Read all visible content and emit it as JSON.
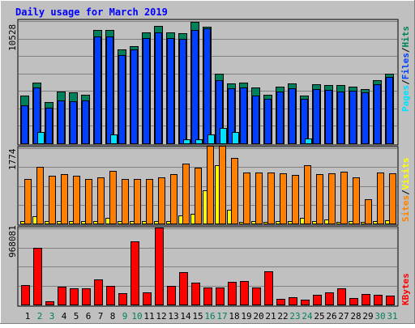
{
  "chart_data": [
    {
      "type": "bar",
      "title": "Daily usage for March 2019",
      "categories": [
        "1",
        "2",
        "3",
        "4",
        "5",
        "6",
        "7",
        "8",
        "9",
        "10",
        "11",
        "12",
        "13",
        "14",
        "15",
        "16",
        "17",
        "18",
        "19",
        "20",
        "21",
        "22",
        "23",
        "24",
        "25",
        "26",
        "27",
        "28",
        "29",
        "30",
        "31"
      ],
      "weekend_days": [
        "2",
        "3",
        "9",
        "10",
        "16",
        "17",
        "23",
        "24",
        "30",
        "31"
      ],
      "ylabel_parts": [
        "Pages",
        "Files",
        "Hits"
      ],
      "ymax_label": "10528",
      "ylim": [
        0,
        10528
      ],
      "grid": true,
      "series": [
        {
          "name": "Hits",
          "color": "#00805c",
          "values": [
            4110,
            5220,
            3570,
            4430,
            4370,
            4150,
            9760,
            9760,
            8070,
            8340,
            9550,
            10090,
            9520,
            9510,
            10450,
            10040,
            6010,
            5160,
            5210,
            4800,
            4180,
            4880,
            5170,
            4080,
            5110,
            5000,
            5010,
            4860,
            4690,
            5450,
            6020
          ]
        },
        {
          "name": "Files",
          "color": "#0040ff",
          "values": [
            3290,
            4840,
            3040,
            3670,
            3620,
            3670,
            9210,
            9230,
            7620,
            8060,
            9090,
            9520,
            9030,
            9010,
            9790,
            9880,
            5450,
            4760,
            4800,
            4130,
            3810,
            4450,
            4730,
            3810,
            4650,
            4580,
            4490,
            4500,
            4410,
            5060,
            5720
          ]
        },
        {
          "name": "Pages",
          "color": "#00e0ff",
          "values": [
            0,
            1010,
            0,
            0,
            0,
            0,
            0,
            790,
            0,
            0,
            0,
            0,
            0,
            380,
            370,
            800,
            1310,
            1010,
            0,
            0,
            0,
            0,
            0,
            440,
            0,
            0,
            0,
            0,
            0,
            0,
            0
          ]
        }
      ]
    },
    {
      "type": "bar",
      "ylabel_parts": [
        "Sites",
        "Visits"
      ],
      "ymax_label": "1774",
      "ylim": [
        0,
        1774
      ],
      "grid": true,
      "series": [
        {
          "name": "Visits",
          "color": "#ffff00",
          "values": [
            60,
            180,
            50,
            60,
            50,
            60,
            50,
            130,
            50,
            60,
            50,
            60,
            50,
            200,
            230,
            790,
            1370,
            330,
            40,
            60,
            40,
            60,
            50,
            140,
            50,
            100,
            40,
            50,
            30,
            50,
            70
          ]
        },
        {
          "name": "Sites",
          "color": "#ff8000",
          "values": [
            1040,
            1330,
            1120,
            1160,
            1120,
            1050,
            1080,
            1240,
            1050,
            1050,
            1050,
            1090,
            1160,
            1420,
            1310,
            1830,
            1830,
            1540,
            1210,
            1210,
            1200,
            1190,
            1140,
            1370,
            1170,
            1180,
            1220,
            1080,
            580,
            1200,
            1180
          ]
        }
      ]
    },
    {
      "type": "bar",
      "ylabel_parts": [
        "KBytes"
      ],
      "ymax_label": "968081",
      "ylim": [
        0,
        968081
      ],
      "grid": true,
      "series": [
        {
          "name": "KBytes",
          "color": "#ff0000",
          "values": [
            245000,
            723000,
            42000,
            229000,
            206000,
            206000,
            322000,
            233000,
            143000,
            804000,
            155000,
            975000,
            240000,
            412000,
            281000,
            221000,
            221000,
            286000,
            296000,
            213000,
            423000,
            73000,
            91000,
            60000,
            125000,
            156000,
            206000,
            80000,
            137000,
            124000,
            117000
          ]
        }
      ]
    }
  ],
  "legend_colors": {
    "Pages": "#00e0ff",
    "Files": "#0040ff",
    "Hits": "#00805c",
    "Sites": "#ff8000",
    "Visits": "#ffff00",
    "KBytes": "#ff0000",
    "separator": "#000000",
    "weekday_label": "#000000",
    "weekend_label": "#00805c",
    "title": "#0000ff"
  }
}
